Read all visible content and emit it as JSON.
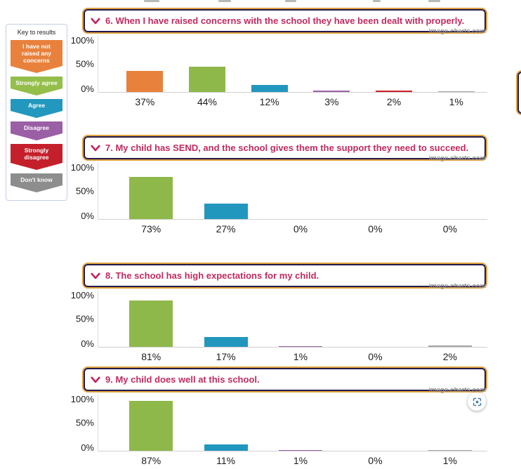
{
  "watermark": "image-charts.com",
  "legend": {
    "title": "Key to results",
    "items": [
      {
        "label": "I have not raised any concerns",
        "color": "#e8813c"
      },
      {
        "label": "Strongly agree",
        "color": "#94be4a"
      },
      {
        "label": "Agree",
        "color": "#2398be"
      },
      {
        "label": "Disagree",
        "color": "#9b5fa5"
      },
      {
        "label": "Strongly disagree",
        "color": "#c4202b"
      },
      {
        "label": "Don't know",
        "color": "#8d8d8d"
      }
    ]
  },
  "chart_data": [
    {
      "type": "bar",
      "title": "6. When I have raised concerns with the school they have been dealt with properly.",
      "categories": [
        "I have not raised any concerns",
        "Strongly agree",
        "Agree",
        "Disagree",
        "Strongly disagree",
        "Don't know"
      ],
      "values": [
        37,
        44,
        12,
        3,
        2,
        1
      ],
      "labels": [
        "37%",
        "44%",
        "12%",
        "3%",
        "2%",
        "1%"
      ],
      "bar_colors": [
        "#e8813c",
        "#8fb84a",
        "#2197be",
        "#9c64a8",
        "#cc2229",
        "#a6a6a6"
      ],
      "yticks": [
        "100%",
        "50%",
        "0%"
      ],
      "ylim": [
        0,
        100
      ],
      "xlabel": "",
      "ylabel": "",
      "legend_position": "left-sidebar",
      "grid": false
    },
    {
      "type": "bar",
      "title": "7. My child has SEND, and the school gives them the support they need to succeed.",
      "categories": [
        "Strongly agree",
        "Agree",
        "Disagree",
        "Strongly disagree",
        "Don't know"
      ],
      "values": [
        73,
        27,
        0,
        0,
        0
      ],
      "labels": [
        "73%",
        "27%",
        "0%",
        "0%",
        "0%"
      ],
      "bar_colors": [
        "#8fb84a",
        "#2197be",
        "#9c64a8",
        "#cc2229",
        "#a6a6a6"
      ],
      "yticks": [
        "100%",
        "50%",
        "0%"
      ],
      "ylim": [
        0,
        100
      ],
      "xlabel": "",
      "ylabel": "",
      "legend_position": "left-sidebar",
      "grid": false
    },
    {
      "type": "bar",
      "title": "8. The school has high expectations for my child.",
      "categories": [
        "Strongly agree",
        "Agree",
        "Disagree",
        "Strongly disagree",
        "Don't know"
      ],
      "values": [
        81,
        17,
        1,
        0,
        2
      ],
      "labels": [
        "81%",
        "17%",
        "1%",
        "0%",
        "2%"
      ],
      "bar_colors": [
        "#8fb84a",
        "#2197be",
        "#9c64a8",
        "#cc2229",
        "#a6a6a6"
      ],
      "yticks": [
        "100%",
        "50%",
        "0%"
      ],
      "ylim": [
        0,
        100
      ],
      "xlabel": "",
      "ylabel": "",
      "legend_position": "left-sidebar",
      "grid": false
    },
    {
      "type": "bar",
      "title": "9. My child does well at this school.",
      "categories": [
        "Strongly agree",
        "Agree",
        "Disagree",
        "Strongly disagree",
        "Don't know"
      ],
      "values": [
        87,
        11,
        1,
        0,
        1
      ],
      "labels": [
        "87%",
        "11%",
        "1%",
        "0%",
        "1%"
      ],
      "bar_colors": [
        "#8fb84a",
        "#2197be",
        "#9c64a8",
        "#cc2229",
        "#a6a6a6"
      ],
      "yticks": [
        "100%",
        "50%",
        "0%"
      ],
      "ylim": [
        0,
        100
      ],
      "xlabel": "",
      "ylabel": "",
      "legend_position": "left-sidebar",
      "grid": false
    }
  ]
}
